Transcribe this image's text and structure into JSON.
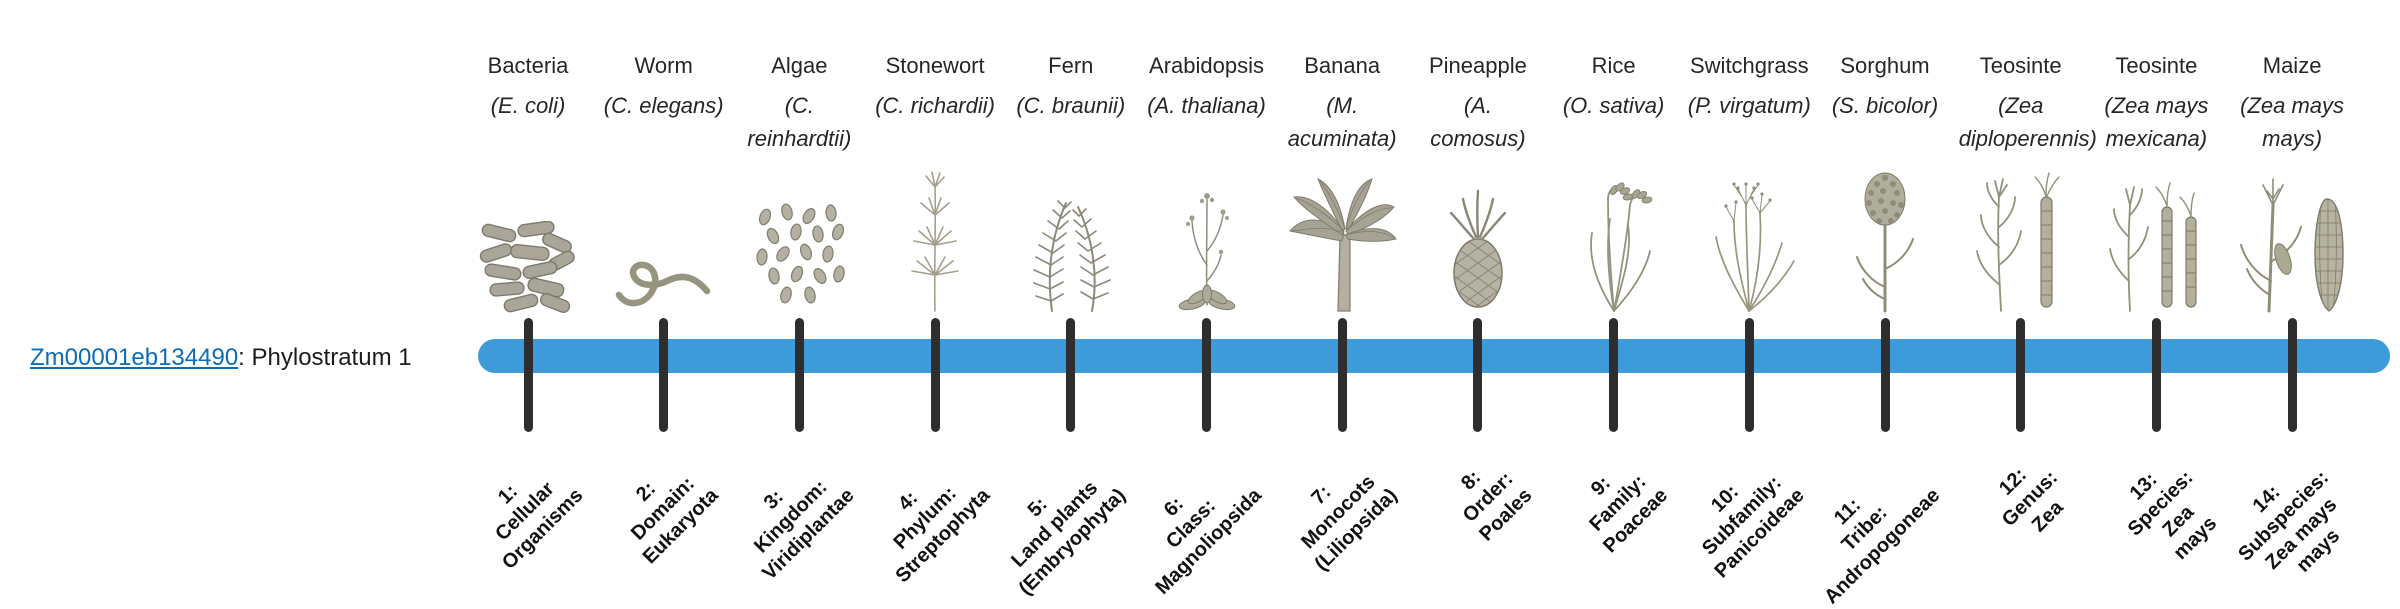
{
  "gene": {
    "id": "Zm00001eb134490",
    "stratum_text": ": Phylostratum 1"
  },
  "timeline": {
    "bar_color": "#3d9bd9",
    "tick_color": "#2e2e2e"
  },
  "columns": [
    {
      "common_name": "Bacteria",
      "sci_name": "(E. coli)",
      "icon": "bacteria-icon",
      "stratum_label": "1:\nCellular\nOrganisms"
    },
    {
      "common_name": "Worm",
      "sci_name": "(C. elegans)",
      "icon": "worm-icon",
      "stratum_label": "2:\nDomain:\nEukaryota"
    },
    {
      "common_name": "Algae",
      "sci_name": "(C. reinhardtii)",
      "icon": "algae-icon",
      "stratum_label": "3:\nKingdom:\nViridiplantae"
    },
    {
      "common_name": "Stonewort",
      "sci_name": "(C. richardii)",
      "icon": "stonewort-icon",
      "stratum_label": "4:\nPhylum:\nStreptophyta"
    },
    {
      "common_name": "Fern",
      "sci_name": "(C. braunii)",
      "icon": "fern-icon",
      "stratum_label": "5:\nLand plants\n(Embryophyta)"
    },
    {
      "common_name": "Arabidopsis",
      "sci_name": "(A. thaliana)",
      "icon": "arabidopsis-icon",
      "stratum_label": "6:\nClass:\nMagnoliopsida"
    },
    {
      "common_name": "Banana",
      "sci_name": "(M. acuminata)",
      "icon": "banana-icon",
      "stratum_label": "7:\nMonocots\n(Liliopsida)"
    },
    {
      "common_name": "Pineapple",
      "sci_name": "(A. comosus)",
      "icon": "pineapple-icon",
      "stratum_label": "8:\nOrder:\nPoales"
    },
    {
      "common_name": "Rice",
      "sci_name": "(O. sativa)",
      "icon": "rice-icon",
      "stratum_label": "9:\nFamily:\nPoaceae"
    },
    {
      "common_name": "Switchgrass",
      "sci_name": "(P. virgatum)",
      "icon": "switchgrass-icon",
      "stratum_label": "10:\nSubfamily:\nPanicoideae"
    },
    {
      "common_name": "Sorghum",
      "sci_name": "(S. bicolor)",
      "icon": "sorghum-icon",
      "stratum_label": "11:\nTribe:\nAndropogoneae"
    },
    {
      "common_name": "Teosinte",
      "sci_name": "(Zea diploperennis)",
      "icon": "teosinte-diploperennis-icon",
      "stratum_label": "12:\nGenus:\nZea"
    },
    {
      "common_name": "Teosinte",
      "sci_name": "(Zea mays mexicana)",
      "icon": "teosinte-mexicana-icon",
      "stratum_label": "13:\nSpecies:\nZea\nmays"
    },
    {
      "common_name": "Maize",
      "sci_name": "(Zea mays mays)",
      "icon": "maize-icon",
      "stratum_label": "14:\nSubspecies:\nZea mays\nmays"
    }
  ]
}
